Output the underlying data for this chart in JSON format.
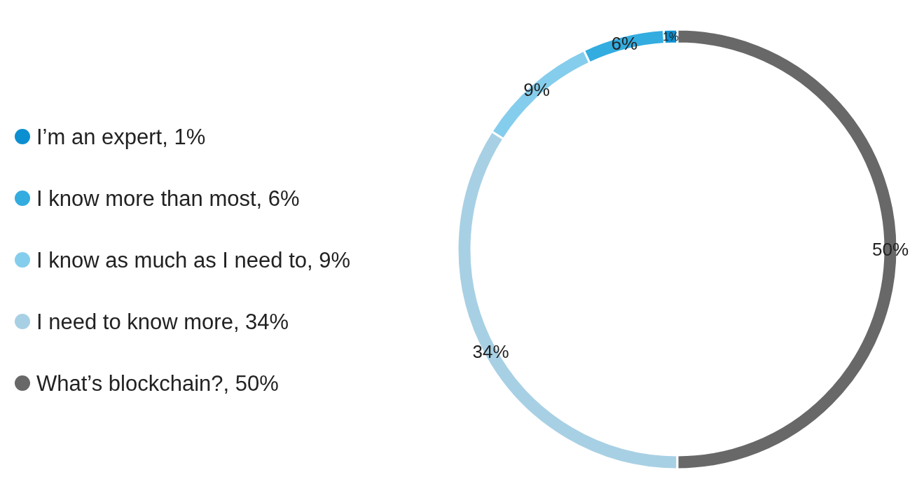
{
  "chart_data": {
    "type": "donut",
    "categories": [
      "I’m an expert, 1%",
      "I know more than most, 6%",
      "I know as much as I need to, 9%",
      "I need to know more, 34%",
      "What’s blockchain?, 50%"
    ],
    "values": [
      1,
      6,
      9,
      34,
      50
    ],
    "value_labels": [
      "1%",
      "6%",
      "9%",
      "34%",
      "50%"
    ],
    "colors": [
      "#0b8fd0",
      "#33ace0",
      "#85cdec",
      "#a8d0e4",
      "#686868"
    ],
    "legend": "left"
  }
}
